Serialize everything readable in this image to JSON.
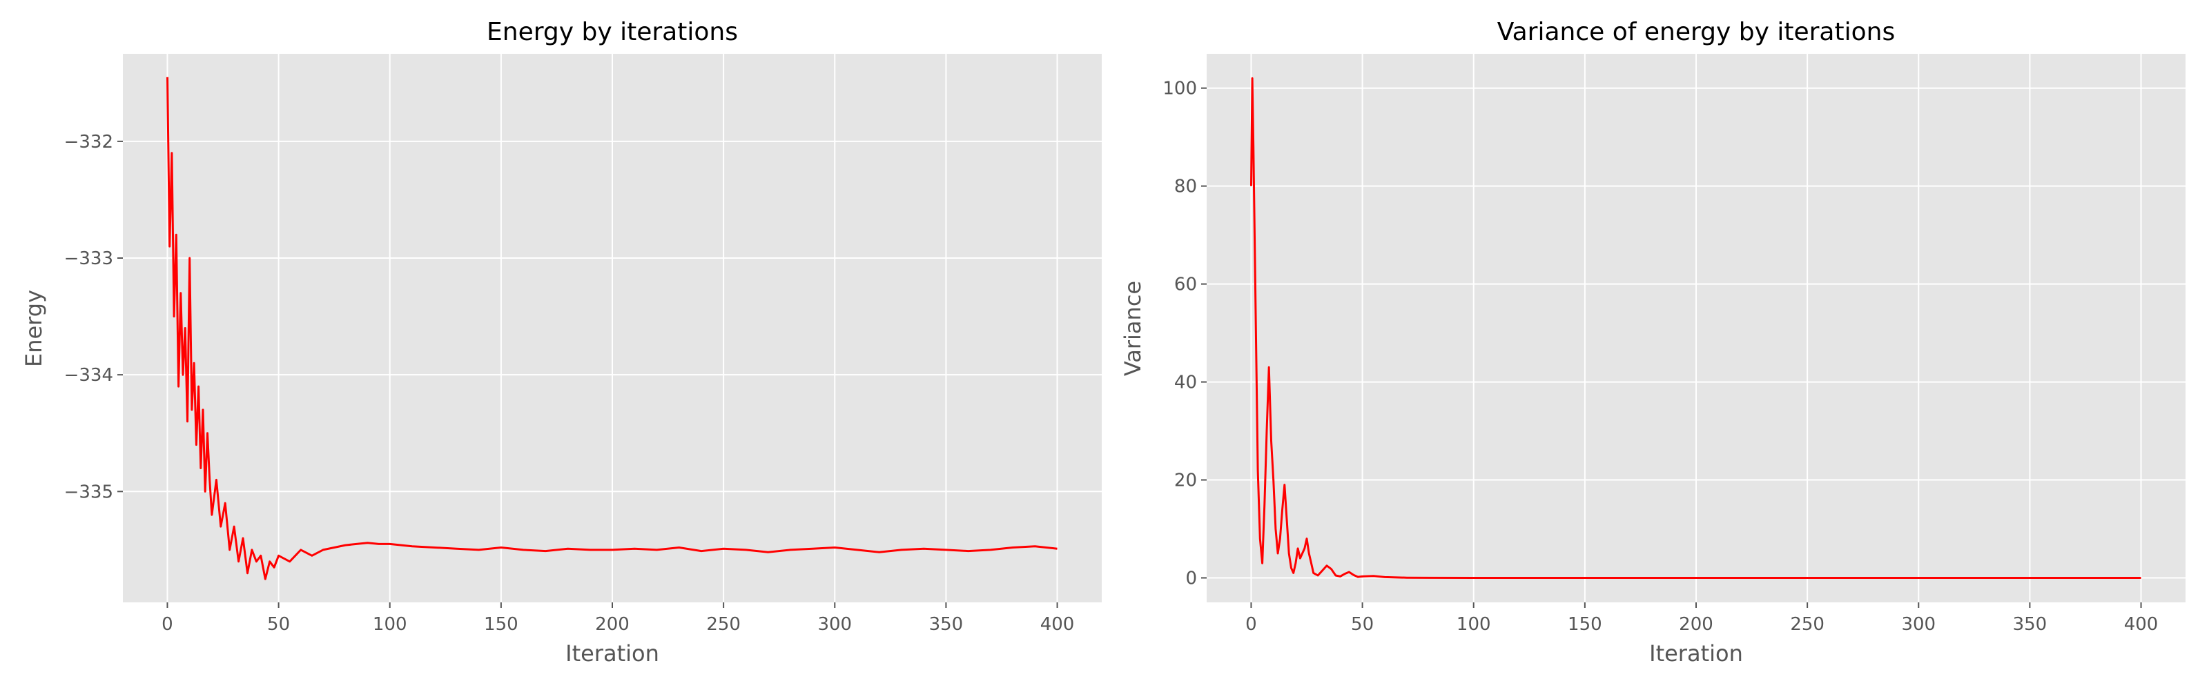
{
  "chart_data": [
    {
      "type": "line",
      "title": "Energy by iterations",
      "xlabel": "Iteration",
      "ylabel": "Energy",
      "xlim": [
        -20,
        420
      ],
      "ylim": [
        -335.95,
        -331.25
      ],
      "xticks": [
        0,
        50,
        100,
        150,
        200,
        250,
        300,
        350,
        400
      ],
      "xtick_labels": [
        "0",
        "50",
        "100",
        "150",
        "200",
        "250",
        "300",
        "350",
        "400"
      ],
      "yticks": [
        -332,
        -333,
        -334,
        -335
      ],
      "ytick_labels": [
        "−332",
        "−333",
        "−334",
        "−335"
      ],
      "grid": true,
      "line_color": "#ff0000",
      "series": [
        {
          "x": [
            0,
            1,
            2,
            3,
            4,
            5,
            6,
            7,
            8,
            9,
            10,
            11,
            12,
            13,
            14,
            15,
            16,
            17,
            18,
            19,
            20,
            22,
            24,
            26,
            28,
            30,
            32,
            34,
            36,
            38,
            40,
            42,
            44,
            46,
            48,
            50,
            55,
            60,
            65,
            70,
            75,
            80,
            85,
            90,
            95,
            100,
            110,
            120,
            130,
            140,
            150,
            160,
            170,
            180,
            190,
            200,
            210,
            220,
            230,
            240,
            250,
            260,
            270,
            280,
            290,
            300,
            310,
            320,
            330,
            340,
            350,
            360,
            370,
            380,
            390,
            400
          ],
          "y": [
            -331.45,
            -332.9,
            -332.1,
            -333.5,
            -332.8,
            -334.1,
            -333.3,
            -334.0,
            -333.6,
            -334.4,
            -333.0,
            -334.3,
            -333.9,
            -334.6,
            -334.1,
            -334.8,
            -334.3,
            -335.0,
            -334.5,
            -334.9,
            -335.2,
            -334.9,
            -335.3,
            -335.1,
            -335.5,
            -335.3,
            -335.6,
            -335.4,
            -335.7,
            -335.5,
            -335.6,
            -335.55,
            -335.75,
            -335.6,
            -335.65,
            -335.55,
            -335.6,
            -335.5,
            -335.55,
            -335.5,
            -335.48,
            -335.46,
            -335.45,
            -335.44,
            -335.45,
            -335.45,
            -335.47,
            -335.48,
            -335.49,
            -335.5,
            -335.48,
            -335.5,
            -335.51,
            -335.49,
            -335.5,
            -335.5,
            -335.49,
            -335.5,
            -335.48,
            -335.51,
            -335.49,
            -335.5,
            -335.52,
            -335.5,
            -335.49,
            -335.48,
            -335.5,
            -335.52,
            -335.5,
            -335.49,
            -335.5,
            -335.51,
            -335.5,
            -335.48,
            -335.47,
            -335.49
          ]
        }
      ]
    },
    {
      "type": "line",
      "title": "Variance of energy by iterations",
      "xlabel": "Iteration",
      "ylabel": "Variance",
      "xlim": [
        -20,
        420
      ],
      "ylim": [
        -5,
        107
      ],
      "xticks": [
        0,
        50,
        100,
        150,
        200,
        250,
        300,
        350,
        400
      ],
      "xtick_labels": [
        "0",
        "50",
        "100",
        "150",
        "200",
        "250",
        "300",
        "350",
        "400"
      ],
      "yticks": [
        0,
        20,
        40,
        60,
        80,
        100
      ],
      "ytick_labels": [
        "0",
        "20",
        "40",
        "60",
        "80",
        "100"
      ],
      "grid": true,
      "line_color": "#ff0000",
      "series": [
        {
          "x": [
            0,
            0.5,
            1,
            2,
            3,
            4,
            5,
            6,
            7,
            8,
            9,
            10,
            11,
            12,
            13,
            14,
            15,
            16,
            17,
            18,
            19,
            20,
            21,
            22,
            24,
            25,
            26,
            27,
            28,
            30,
            32,
            34,
            36,
            38,
            40,
            42,
            44,
            46,
            48,
            50,
            55,
            60,
            70,
            80,
            100,
            150,
            200,
            250,
            300,
            350,
            400
          ],
          "y": [
            80,
            102,
            88,
            55,
            22,
            8,
            3,
            15,
            30,
            43,
            28,
            20,
            10,
            5,
            8,
            14,
            19,
            12,
            5,
            2,
            1,
            3,
            6,
            4,
            6,
            8,
            5,
            3,
            1,
            0.5,
            1.5,
            2.5,
            1.8,
            0.5,
            0.3,
            0.8,
            1.2,
            0.6,
            0.2,
            0.3,
            0.4,
            0.15,
            0.05,
            0.02,
            0,
            0,
            0,
            0,
            0,
            0,
            0
          ]
        }
      ]
    }
  ]
}
